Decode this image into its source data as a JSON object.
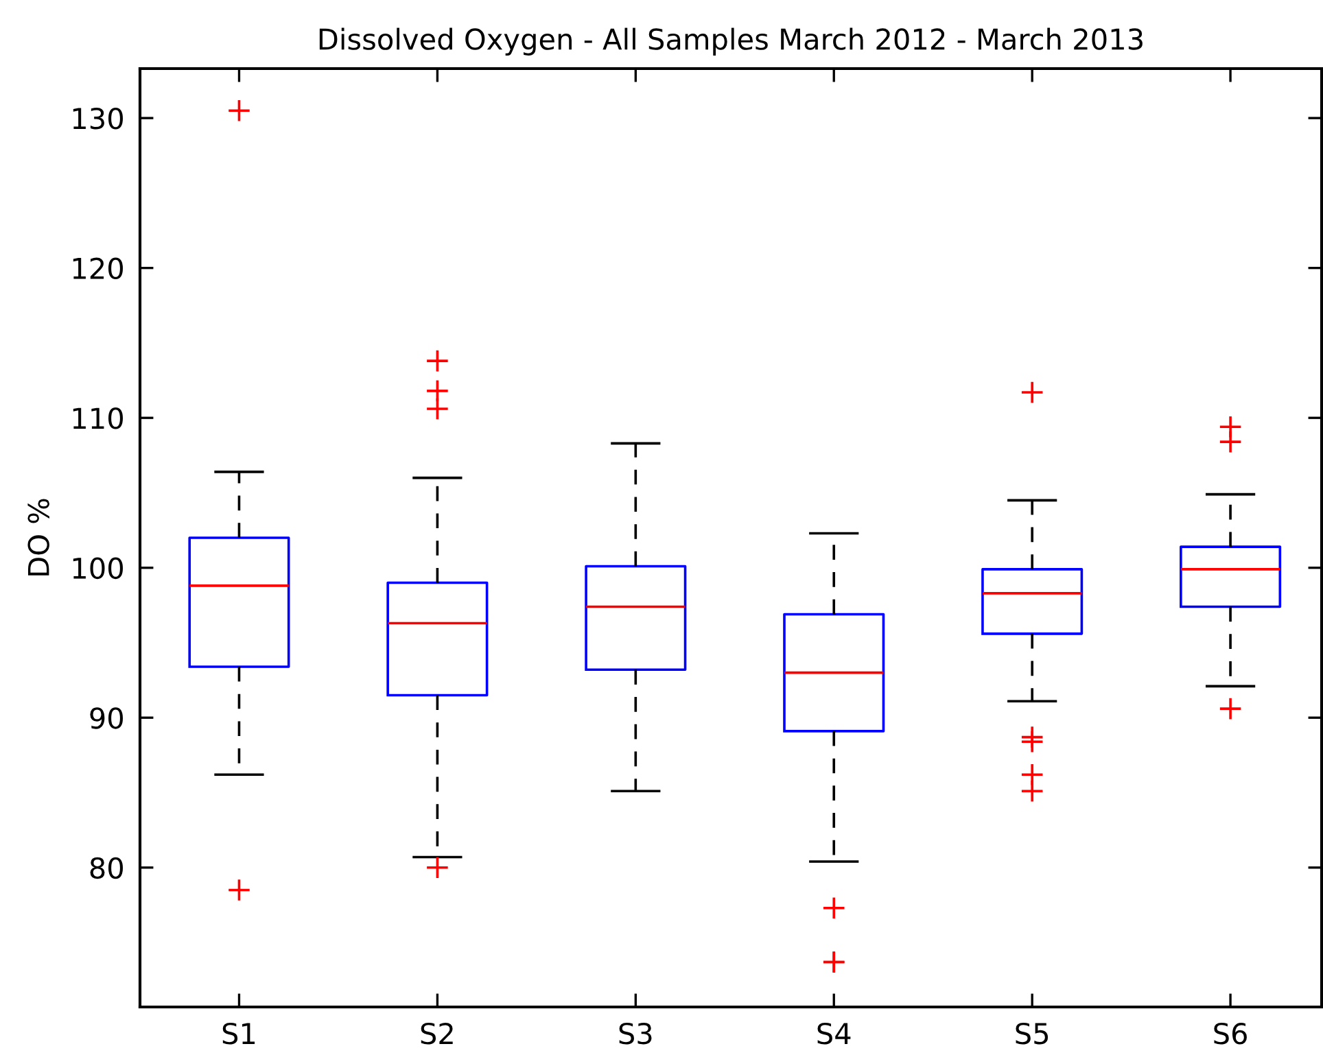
{
  "chart_data": {
    "type": "box",
    "title": "Dissolved Oxygen - All Samples March 2012 - March 2013",
    "ylabel": "DO %",
    "categories": [
      "S1",
      "S2",
      "S3",
      "S4",
      "S5",
      "S6"
    ],
    "boxes": [
      {
        "low": 86.2,
        "q1": 93.4,
        "median": 98.8,
        "q3": 102.0,
        "high": 106.4,
        "outliers": [
          130.5,
          78.5
        ]
      },
      {
        "low": 80.7,
        "q1": 91.5,
        "median": 96.3,
        "q3": 99.0,
        "high": 106.0,
        "outliers": [
          113.8,
          111.8,
          110.6,
          80.0
        ]
      },
      {
        "low": 85.1,
        "q1": 93.2,
        "median": 97.4,
        "q3": 100.1,
        "high": 108.3
      },
      {
        "low": 80.4,
        "q1": 89.1,
        "median": 93.0,
        "q3": 96.9,
        "high": 102.3,
        "outliers": [
          77.3,
          73.7,
          73.7
        ]
      },
      {
        "low": 91.1,
        "q1": 95.6,
        "median": 98.3,
        "q3": 99.9,
        "high": 104.5,
        "outliers": [
          111.7,
          88.7,
          88.4,
          86.2,
          85.1
        ]
      },
      {
        "low": 92.1,
        "q1": 97.4,
        "median": 99.9,
        "q3": 101.4,
        "high": 104.9,
        "outliers": [
          109.4,
          108.4,
          90.6
        ]
      }
    ],
    "color": "#0000ff",
    "marker": "cross",
    "line_style": "dashed",
    "ylim": [
      70.7,
      133.3
    ],
    "yticks": [
      80,
      90,
      100,
      110,
      120,
      130
    ],
    "grid": false,
    "legend": false
  }
}
